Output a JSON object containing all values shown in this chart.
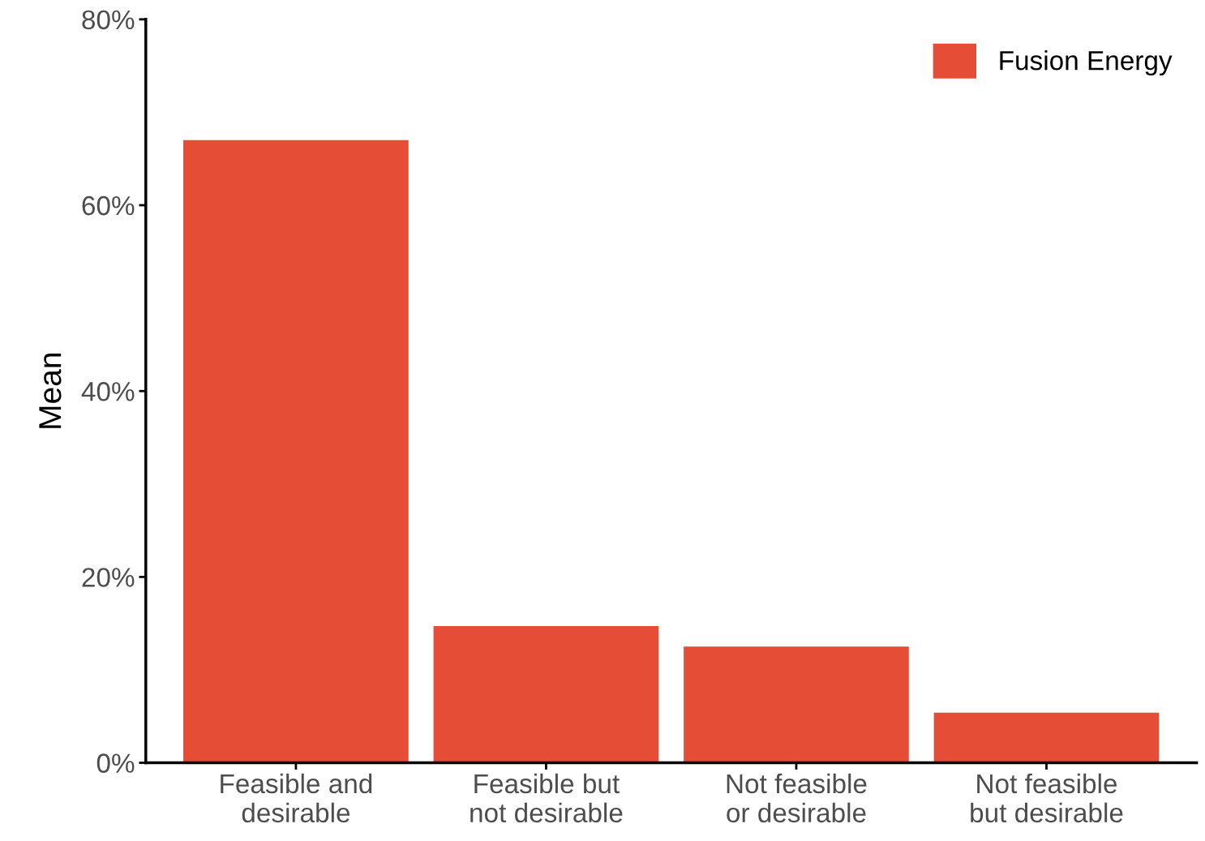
{
  "chart_data": {
    "type": "bar",
    "ylabel": "Mean",
    "categories": [
      "Feasible and\ndesirable",
      "Feasible but\nnot desirable",
      "Not feasible\nor desirable",
      "Not feasible\nbut desirable"
    ],
    "series": [
      {
        "name": "Fusion Energy",
        "color": "#e64d36",
        "values": [
          67.0,
          14.7,
          12.5,
          5.4
        ]
      }
    ],
    "ylim": [
      0,
      80
    ],
    "yticks": [
      {
        "value": 0,
        "label": "0%"
      },
      {
        "value": 20,
        "label": "20%"
      },
      {
        "value": 40,
        "label": "40%"
      },
      {
        "value": 60,
        "label": "60%"
      },
      {
        "value": 80,
        "label": "80%"
      }
    ],
    "grid": false,
    "legend": "top right"
  }
}
